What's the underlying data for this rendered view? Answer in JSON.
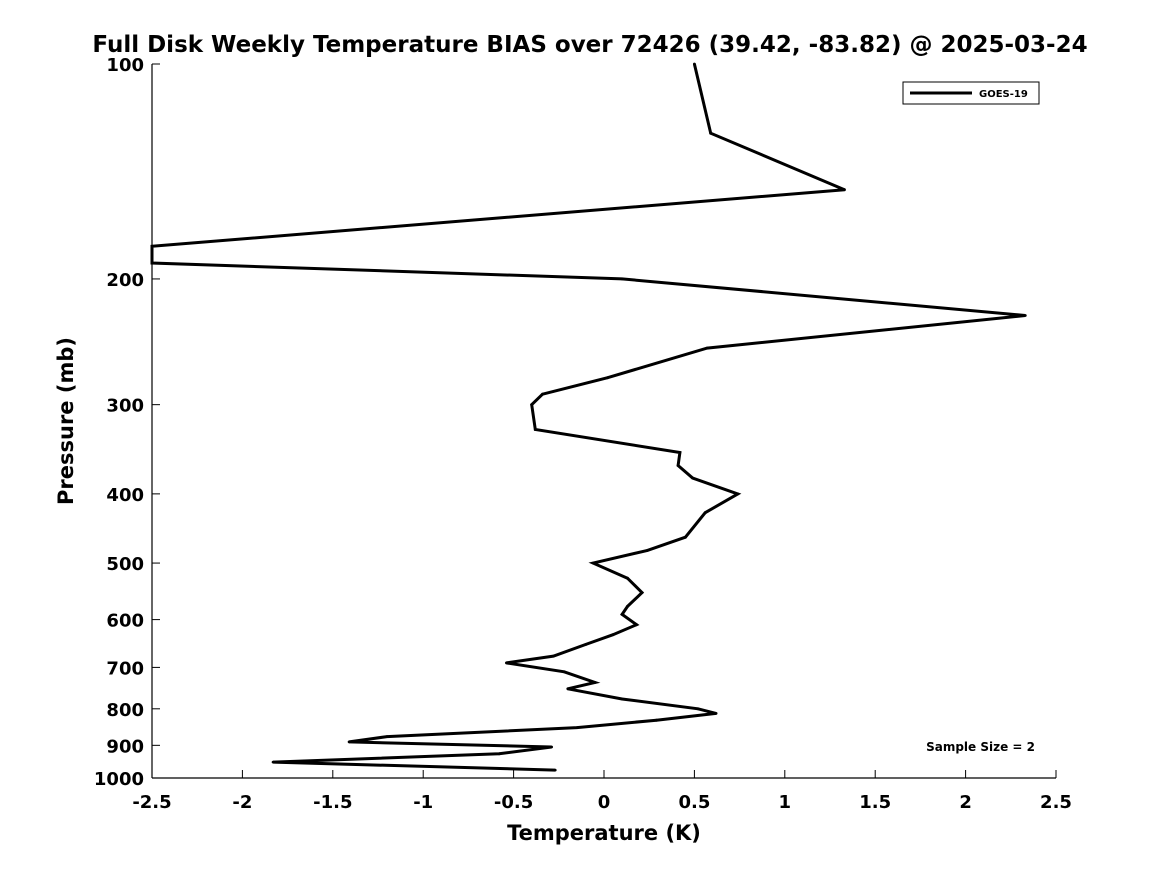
{
  "chart_data": {
    "type": "line",
    "title": "Full Disk Weekly Temperature BIAS over 72426 (39.42, -83.82) @ 2025-03-24",
    "xlabel": "Temperature (K)",
    "ylabel": "Pressure (mb)",
    "xlim": [
      -2.5,
      2.5
    ],
    "ylim": [
      100,
      1000
    ],
    "y_scale": "log",
    "y_reversed": true,
    "x_ticks": [
      -2.5,
      -2,
      -1.5,
      -1,
      -0.5,
      0,
      0.5,
      1,
      1.5,
      2,
      2.5
    ],
    "x_tick_labels": [
      "-2.5",
      "-2",
      "-1.5",
      "-1",
      "-0.5",
      "0",
      "0.5",
      "1",
      "1.5",
      "2",
      "2.5"
    ],
    "y_ticks": [
      100,
      200,
      300,
      400,
      500,
      600,
      700,
      800,
      900,
      1000
    ],
    "y_tick_labels": [
      "100",
      "200",
      "300",
      "400",
      "500",
      "600",
      "700",
      "800",
      "900",
      "1000"
    ],
    "grid": false,
    "legend_position": "top-right",
    "annotation": "Sample Size = 2",
    "series": [
      {
        "name": "GOES-19",
        "color": "#000000",
        "points": [
          {
            "x": 0.5,
            "y": 100
          },
          {
            "x": 0.59,
            "y": 125
          },
          {
            "x": 1.33,
            "y": 150
          },
          {
            "x": -2.5,
            "y": 180
          },
          {
            "x": -2.5,
            "y": 190
          },
          {
            "x": 0.1,
            "y": 200
          },
          {
            "x": 2.33,
            "y": 225
          },
          {
            "x": 0.57,
            "y": 250
          },
          {
            "x": 0.02,
            "y": 275
          },
          {
            "x": -0.34,
            "y": 290
          },
          {
            "x": -0.4,
            "y": 300
          },
          {
            "x": -0.38,
            "y": 325
          },
          {
            "x": 0.42,
            "y": 350
          },
          {
            "x": 0.41,
            "y": 365
          },
          {
            "x": 0.49,
            "y": 380
          },
          {
            "x": 0.74,
            "y": 400
          },
          {
            "x": 0.56,
            "y": 425
          },
          {
            "x": 0.45,
            "y": 460
          },
          {
            "x": 0.24,
            "y": 480
          },
          {
            "x": -0.06,
            "y": 500
          },
          {
            "x": 0.13,
            "y": 525
          },
          {
            "x": 0.21,
            "y": 550
          },
          {
            "x": 0.13,
            "y": 575
          },
          {
            "x": 0.1,
            "y": 590
          },
          {
            "x": 0.18,
            "y": 610
          },
          {
            "x": 0.05,
            "y": 630
          },
          {
            "x": -0.1,
            "y": 650
          },
          {
            "x": -0.28,
            "y": 675
          },
          {
            "x": -0.54,
            "y": 690
          },
          {
            "x": -0.22,
            "y": 710
          },
          {
            "x": -0.05,
            "y": 735
          },
          {
            "x": -0.2,
            "y": 750
          },
          {
            "x": 0.1,
            "y": 775
          },
          {
            "x": 0.52,
            "y": 800
          },
          {
            "x": 0.62,
            "y": 812
          },
          {
            "x": 0.29,
            "y": 830
          },
          {
            "x": -0.15,
            "y": 850
          },
          {
            "x": -1.2,
            "y": 875
          },
          {
            "x": -1.41,
            "y": 890
          },
          {
            "x": -0.29,
            "y": 905
          },
          {
            "x": -0.58,
            "y": 925
          },
          {
            "x": -1.83,
            "y": 950
          },
          {
            "x": -0.27,
            "y": 975
          }
        ]
      }
    ]
  }
}
